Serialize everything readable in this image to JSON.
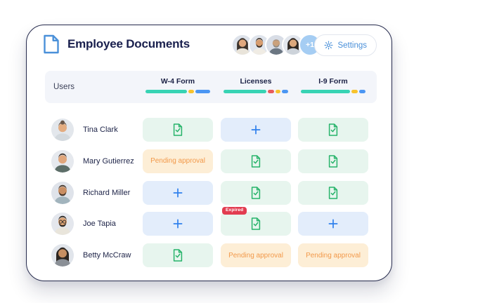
{
  "header": {
    "title": "Employee Documents",
    "overflow_badge": "+1",
    "settings_label": "Settings",
    "avatars": [
      {
        "name": "team-member-1",
        "bg": "#dde2ea",
        "skin": "#e0a87e",
        "hair": "#3c332c",
        "shirt": "#e9e4da",
        "longHair": true
      },
      {
        "name": "team-member-2",
        "bg": "#dfe4ec",
        "skin": "#d69c6e",
        "hair": "#33291f",
        "shirt": "#f0ece4",
        "beard": true
      },
      {
        "name": "team-member-3",
        "bg": "#d8dde6",
        "skin": "#caa17c",
        "hair": "#8e8a85",
        "shirt": "#6b7682",
        "bald": true,
        "beard": true
      },
      {
        "name": "team-member-4",
        "bg": "#e2e6ed",
        "skin": "#dca87c",
        "hair": "#2e2722",
        "shirt": "#cdd3da",
        "longHair": true
      }
    ]
  },
  "table": {
    "users_label": "Users",
    "columns": [
      {
        "label": "W-4 Form",
        "progress": [
          {
            "color": "teal",
            "weight": 62
          },
          {
            "color": "yellow",
            "weight": 9
          },
          {
            "color": "blue",
            "weight": 22
          }
        ]
      },
      {
        "label": "Licenses",
        "progress": [
          {
            "color": "teal",
            "weight": 64
          },
          {
            "color": "red",
            "weight": 9
          },
          {
            "color": "yellow",
            "weight": 8
          },
          {
            "color": "blue",
            "weight": 9
          }
        ]
      },
      {
        "label": "I-9 Form",
        "progress": [
          {
            "color": "teal",
            "weight": 74
          },
          {
            "color": "yellow",
            "weight": 9
          },
          {
            "color": "blue",
            "weight": 10
          }
        ]
      }
    ],
    "cell_labels": {
      "pending": "Pending approval",
      "expired_badge": "Expired"
    },
    "rows": [
      {
        "name": "Tina Clark",
        "avatar": {
          "bg": "#e3e7ec",
          "skin": "#e3ac80",
          "hair": "#6b584a",
          "shirt": "#d3d9de",
          "bun": true
        },
        "cells": [
          {
            "type": "doc"
          },
          {
            "type": "add"
          },
          {
            "type": "doc"
          }
        ]
      },
      {
        "name": "Mary Gutierrez",
        "avatar": {
          "bg": "#e6e9ee",
          "skin": "#e0a67c",
          "hair": "#3d332e",
          "shirt": "#5d6e68"
        },
        "cells": [
          {
            "type": "pending"
          },
          {
            "type": "doc"
          },
          {
            "type": "doc"
          }
        ]
      },
      {
        "name": "Richard Miller",
        "avatar": {
          "bg": "#dfe3ea",
          "skin": "#c98e63",
          "hair": "#46372c",
          "shirt": "#a2b4bd",
          "beard": true
        },
        "cells": [
          {
            "type": "add"
          },
          {
            "type": "doc"
          },
          {
            "type": "doc"
          }
        ]
      },
      {
        "name": "Joe Tapia",
        "avatar": {
          "bg": "#e4e7ed",
          "skin": "#d9a173",
          "hair": "#2e2a26",
          "shirt": "#e9e5db",
          "beard": true,
          "glasses": true
        },
        "cells": [
          {
            "type": "add"
          },
          {
            "type": "doc",
            "badge": "Expired"
          },
          {
            "type": "add"
          }
        ]
      },
      {
        "name": "Betty McCraw",
        "avatar": {
          "bg": "#e1e5eb",
          "skin": "#c78f62",
          "hair": "#2c2520",
          "shirt": "#8a8f96",
          "longHair": true
        },
        "cells": [
          {
            "type": "doc"
          },
          {
            "type": "pending"
          },
          {
            "type": "pending"
          }
        ]
      }
    ]
  },
  "icons": {
    "header_doc": "document-icon",
    "cell_doc": "document-approved-icon",
    "cell_add": "plus-icon",
    "gear": "gear-icon"
  },
  "colors": {
    "accent_blue": "#2f80ed",
    "settings_blue": "#4a90d9",
    "title_navy": "#191f4d",
    "green": "#27b36a",
    "green_bg": "#e7f5ee",
    "blue_bg": "#e3edfb",
    "orange": "#f2994a",
    "orange_bg": "#fdeed6",
    "red_badge": "#e23c50",
    "bar_teal": "#38d3b4",
    "bar_yellow": "#f8c32c",
    "bar_blue": "#4b96f3",
    "bar_red": "#e85c5c",
    "thead_bg": "#f3f5fa"
  }
}
